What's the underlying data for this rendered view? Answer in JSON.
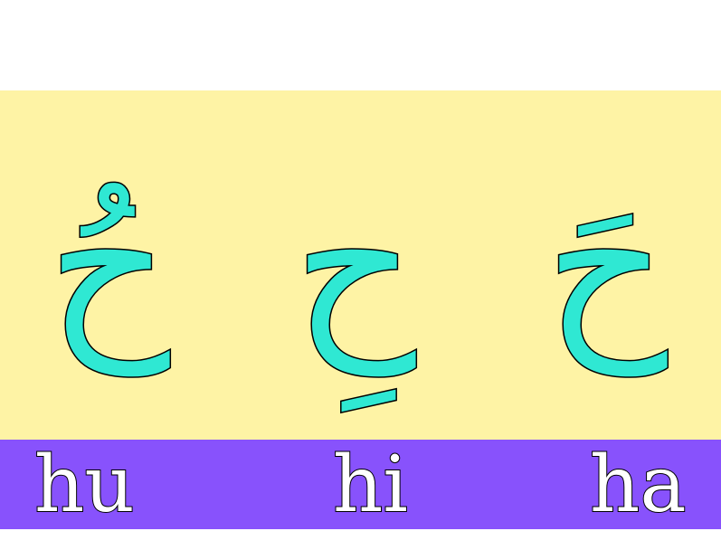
{
  "letters": [
    {
      "glyph": "حُ",
      "syllable": "hu"
    },
    {
      "glyph": "حِ",
      "syllable": "hi"
    },
    {
      "glyph": "حَ",
      "syllable": "ha"
    }
  ],
  "colors": {
    "panel_background": "#fef3a5",
    "label_bar_background": "#8852fc",
    "letter_fill": "#2fe8d3",
    "letter_outline": "#000000",
    "syllable_fill": "#ffffff"
  }
}
